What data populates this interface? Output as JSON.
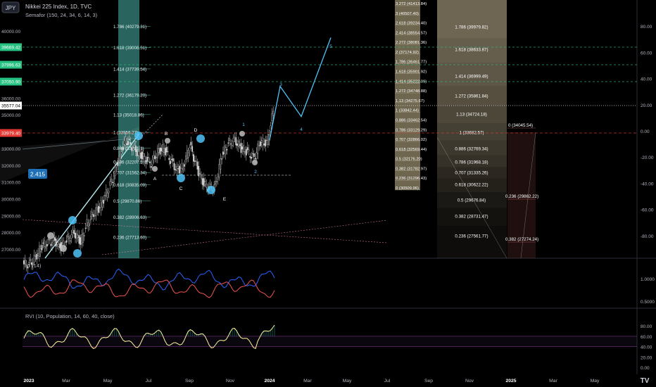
{
  "header": {
    "currency_badge": "JPY",
    "symbol_line": "Nikkei 225 Index, 1D, TVC",
    "indicator_line": "Semafor (150, 24, 34, 6, 14, 3)"
  },
  "colors": {
    "background": "#000000",
    "price_candle": "#d9d9d9",
    "wave_line": "#4fc3f7",
    "fib_band": "#4db6ac",
    "right_fib_band": "#b8a98a",
    "vi_plus": "#2962ff",
    "vi_minus": "#ef5350",
    "rvi_line": "#fff59d",
    "rvi_line2": "#42a5f5",
    "price_label_green": "#26c281",
    "price_label_red": "#e53935"
  },
  "chart_data": [
    {
      "type": "line",
      "panel": "price",
      "title": "Nikkei 225 Index, 1D, TVC",
      "x_ticks": [
        "2023",
        "Mar",
        "May",
        "Jul",
        "Sep",
        "Nov",
        "2024",
        "Mar",
        "May",
        "Jul",
        "Sep",
        "Nov",
        "2025",
        "Mar",
        "May"
      ],
      "left_axis_ticks": [
        "40000.00",
        "39000.00",
        "38000.00",
        "37000.00",
        "36000.00",
        "35000.00",
        "34000.00",
        "33000.00",
        "32000.00",
        "31000.00",
        "30000.00",
        "29000.00",
        "28000.00",
        "27000.00"
      ],
      "right_axis_ticks": [
        "80.00",
        "60.00",
        "40.00",
        "20.00",
        "0.00",
        "-20.00",
        "-40.00",
        "-60.00",
        "-80.00"
      ],
      "price_labels": [
        {
          "label": "39669.42",
          "color": "green"
        },
        {
          "label": "37996.63",
          "color": "green"
        },
        {
          "label": "37050.90",
          "color": "green"
        },
        {
          "label": "35577.04",
          "color": "white"
        },
        {
          "label": "33979.40",
          "color": "red"
        }
      ],
      "ratio_badge": "2.415",
      "wave_labels": [
        "A",
        "B",
        "C",
        "D",
        "E",
        "1",
        "2",
        "3",
        "4",
        "5"
      ],
      "left_fib_levels": [
        "1.786 (40279.31)",
        "1.618 (39006.51)",
        "1.414 (37739.54)",
        "1.272 (36179.20)",
        "1.13 (35018.86)",
        "1 (33956.27)",
        "0.886 (33021.1)",
        "0.786 (32207.5)",
        "0.707 (31562.34)",
        "0.618 (30835.09)",
        "0.5 (29870.86)",
        "0.382 (28906.63)",
        "0.236 (27713.60)"
      ],
      "mid_fib_levels": [
        "3.272 (41413.84)",
        "3 (40507.40)",
        "2.618 (39234.40)",
        "2.414 (38554.57)",
        "2.272 (38081.36)",
        "2 (37174.92)",
        "1.786 (36461.77)",
        "1.618 (35901.92)",
        "1.414 (35222.09)",
        "1.272 (34748.88)",
        "1.13 (34275.67)",
        "1 (33842.44)",
        "0.886 (33462.54)",
        "0.786 (33129.29)",
        "0.707 (32866.02)",
        "0.618 (32569.44)",
        "0.5 (32176.20)",
        "0.382 (31782.97)",
        "0.236 (31296.43)",
        "0 (30509.96)"
      ],
      "right_fib_levels": [
        "1.786 (39979.82)",
        "1.618 (38633.87)",
        "1.414 (36999.49)",
        "1.272 (35861.84)",
        "1.13 (34724.18)",
        "1 (33682.57)",
        "0.886 (32769.34)",
        "0.786 (31968.18)",
        "0.707 (31335.26)",
        "0.618 (30622.22)",
        "0.5 (29676.84)",
        "0.382 (28731.47)",
        "0.236 (27561.77)"
      ],
      "far_right_fib_levels": [
        "0 (34045.54)",
        "0.236 (29862.22)",
        "0.382 (27274.24)"
      ],
      "close_series_approx": [
        26100,
        26500,
        27200,
        27400,
        27500,
        27100,
        27600,
        28000,
        27400,
        28500,
        29100,
        29500,
        30300,
        31200,
        32500,
        33500,
        33100,
        32700,
        32400,
        32100,
        32800,
        33000,
        32300,
        31700,
        31900,
        33200,
        32000,
        31000,
        30600,
        30800,
        32600,
        33300,
        33500,
        33000,
        32800,
        32400,
        33400,
        33300,
        35200
      ],
      "projection_path_approx": [
        33500,
        36700,
        34900,
        39600
      ]
    },
    {
      "type": "line",
      "panel": "VI",
      "title": "VI (14)",
      "y_ticks": [
        "1.0000",
        "0.5000"
      ],
      "series": [
        {
          "name": "VI+",
          "color": "#2962ff"
        },
        {
          "name": "VI-",
          "color": "#ef5350"
        }
      ]
    },
    {
      "type": "line",
      "panel": "RVI",
      "title": "RVI (10, Population, 14, 60, 40, close)",
      "y_ticks": [
        "80.00",
        "60.00",
        "40.00",
        "20.00",
        "0.00"
      ],
      "levels": [
        60,
        40
      ]
    }
  ]
}
